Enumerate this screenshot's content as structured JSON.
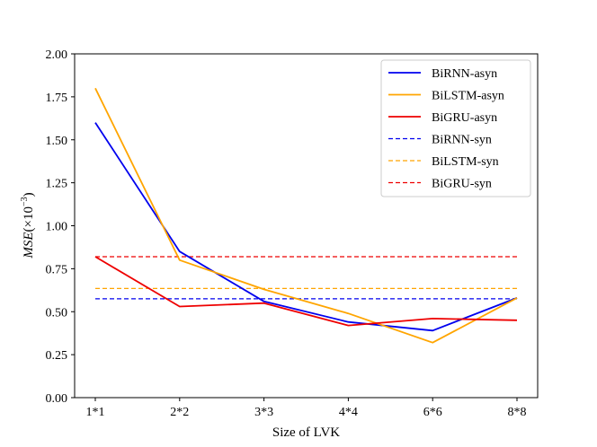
{
  "chart_data": {
    "type": "line",
    "title": "",
    "xlabel": "Size of LVK",
    "ylabel_italic": "MSE",
    "ylabel_suffix": "(×10",
    "ylabel_exp": "−3",
    "ylabel_close": ")",
    "categories": [
      "1*1",
      "2*2",
      "3*3",
      "4*4",
      "6*6",
      "8*8"
    ],
    "ylim": [
      0,
      2.0
    ],
    "yticks": [
      "0.00",
      "0.25",
      "0.50",
      "0.75",
      "1.00",
      "1.25",
      "1.50",
      "1.75",
      "2.00"
    ],
    "ytick_values": [
      0,
      0.25,
      0.5,
      0.75,
      1.0,
      1.25,
      1.5,
      1.75,
      2.0
    ],
    "grid": false,
    "legend_position": "top-right",
    "series": [
      {
        "name": "BiRNN-asyn",
        "style": "solid",
        "color": "#0000ee",
        "values": [
          1.6,
          0.85,
          0.56,
          0.44,
          0.39,
          0.58
        ]
      },
      {
        "name": "BiLSTM-asyn",
        "style": "solid",
        "color": "#ffa500",
        "values": [
          1.8,
          0.8,
          0.63,
          0.49,
          0.32,
          0.58
        ]
      },
      {
        "name": "BiGRU-asyn",
        "style": "solid",
        "color": "#ee0000",
        "values": [
          0.82,
          0.53,
          0.55,
          0.42,
          0.46,
          0.45
        ]
      },
      {
        "name": "BiRNN-syn",
        "style": "dashed",
        "color": "#0000ee",
        "values": [
          0.575,
          0.575,
          0.575,
          0.575,
          0.575,
          0.575
        ]
      },
      {
        "name": "BiLSTM-syn",
        "style": "dashed",
        "color": "#ffa500",
        "values": [
          0.635,
          0.635,
          0.635,
          0.635,
          0.635,
          0.635
        ]
      },
      {
        "name": "BiGRU-syn",
        "style": "dashed",
        "color": "#ee0000",
        "values": [
          0.82,
          0.82,
          0.82,
          0.82,
          0.82,
          0.82
        ]
      }
    ]
  }
}
